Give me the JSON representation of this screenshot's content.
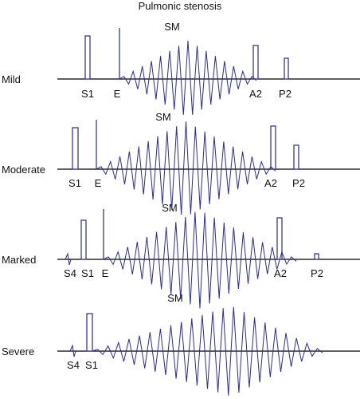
{
  "title": "Pulmonic stenosis",
  "panels": [
    {
      "label": "Mild",
      "murmur": "SM",
      "sounds": [
        "S1",
        "E",
        "A2",
        "P2"
      ]
    },
    {
      "label": "Moderate",
      "murmur": "SM",
      "sounds": [
        "S1",
        "E",
        "A2",
        "P2"
      ]
    },
    {
      "label": "Marked",
      "murmur": "SM",
      "sounds": [
        "S4",
        "S1",
        "E",
        "A2",
        "P2"
      ]
    },
    {
      "label": "Severe",
      "murmur": "SM",
      "sounds": [
        "S4",
        "S1"
      ]
    }
  ]
}
